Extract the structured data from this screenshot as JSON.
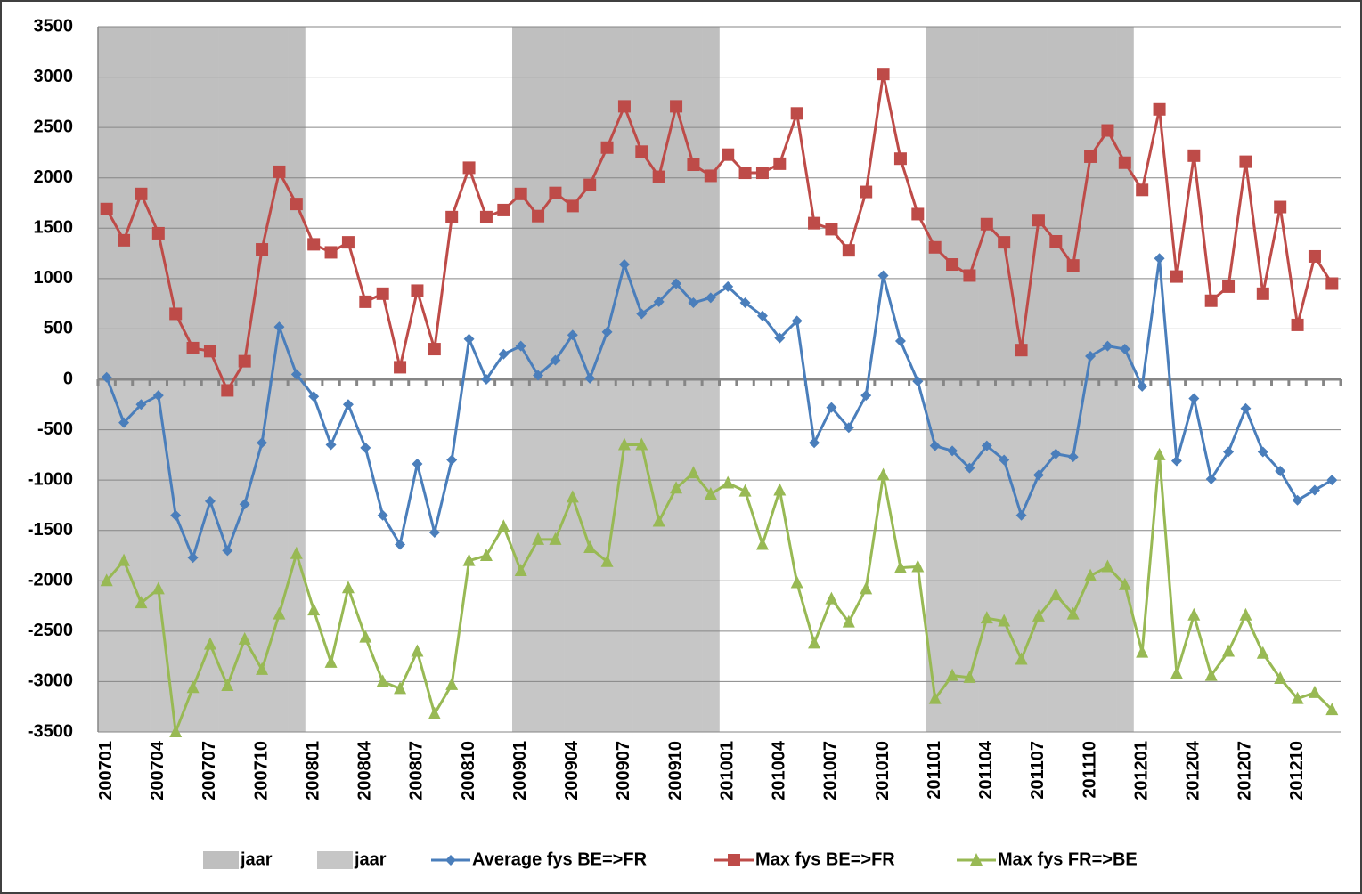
{
  "chart_data": {
    "type": "line",
    "categories": [
      "200701",
      null,
      null,
      "200704",
      null,
      null,
      "200707",
      null,
      null,
      "200710",
      null,
      null,
      "200801",
      null,
      null,
      "200804",
      null,
      null,
      "200807",
      null,
      null,
      "200810",
      null,
      null,
      "200901",
      null,
      null,
      "200904",
      null,
      null,
      "200907",
      null,
      null,
      "200910",
      null,
      null,
      "201001",
      null,
      null,
      "201004",
      null,
      null,
      "201007",
      null,
      null,
      "201010",
      null,
      null,
      "201101",
      null,
      null,
      "201104",
      null,
      null,
      "201107",
      null,
      null,
      "201110",
      null,
      null,
      "201201",
      null,
      null,
      "201204",
      null,
      null,
      "201207",
      null,
      null,
      "201210",
      null,
      null
    ],
    "ylim": [
      -3500,
      3500
    ],
    "yticks": [
      -3500,
      -3000,
      -2500,
      -2000,
      -1500,
      -1000,
      -500,
      0,
      500,
      1000,
      1500,
      2000,
      2500,
      3000,
      3500
    ],
    "grid": true,
    "legend": "bottom",
    "series": [
      {
        "name": "jaar",
        "type": "bar",
        "color": "#bfbfbf",
        "values": [
          3500,
          3500,
          3500,
          3500,
          3500,
          3500,
          3500,
          3500,
          3500,
          3500,
          3500,
          3500,
          null,
          null,
          null,
          null,
          null,
          null,
          null,
          null,
          null,
          null,
          null,
          null,
          3500,
          3500,
          3500,
          3500,
          3500,
          3500,
          3500,
          3500,
          3500,
          3500,
          3500,
          3500,
          null,
          null,
          null,
          null,
          null,
          null,
          null,
          null,
          null,
          null,
          null,
          null,
          3500,
          3500,
          3500,
          3500,
          3500,
          3500,
          3500,
          3500,
          3500,
          3500,
          3500,
          3500,
          null,
          null,
          null,
          null,
          null,
          null,
          null,
          null,
          null,
          null,
          null,
          null
        ]
      },
      {
        "name": "jaar",
        "type": "bar",
        "color": "#c6c6c6",
        "values": [
          -3500,
          -3500,
          -3500,
          -3500,
          -3500,
          -3500,
          -3500,
          -3500,
          -3500,
          -3500,
          -3500,
          -3500,
          null,
          null,
          null,
          null,
          null,
          null,
          null,
          null,
          null,
          null,
          null,
          null,
          -3500,
          -3500,
          -3500,
          -3500,
          -3500,
          -3500,
          -3500,
          -3500,
          -3500,
          -3500,
          -3500,
          -3500,
          null,
          null,
          null,
          null,
          null,
          null,
          null,
          null,
          null,
          null,
          null,
          null,
          -3500,
          -3500,
          -3500,
          -3500,
          -3500,
          -3500,
          -3500,
          -3500,
          -3500,
          -3500,
          -3500,
          -3500,
          null,
          null,
          null,
          null,
          null,
          null,
          null,
          null,
          null,
          null,
          null,
          null
        ]
      },
      {
        "name": "Average fys BE=>FR",
        "type": "line",
        "marker": "diamond",
        "color": "#4a7ebb",
        "values": [
          20,
          -430,
          -250,
          -160,
          -1350,
          -1770,
          -1210,
          -1700,
          -1240,
          -630,
          520,
          50,
          -170,
          -650,
          -250,
          -680,
          -1350,
          -1640,
          -840,
          -1520,
          -800,
          400,
          0,
          250,
          330,
          40,
          190,
          440,
          10,
          470,
          1140,
          650,
          770,
          950,
          760,
          810,
          920,
          760,
          630,
          410,
          580,
          -630,
          -280,
          -480,
          -160,
          1030,
          380,
          -20,
          -660,
          -710,
          -880,
          -660,
          -800,
          -1350,
          -950,
          -740,
          -770,
          230,
          330,
          300,
          -70,
          1200,
          -810,
          -190,
          -990,
          -720,
          -290,
          -720,
          -910,
          -1200,
          -1100,
          -1000
        ]
      },
      {
        "name": "Max fys BE=>FR",
        "type": "line",
        "marker": "square",
        "color": "#be4b48",
        "values": [
          1690,
          1380,
          1840,
          1450,
          650,
          310,
          280,
          -110,
          180,
          1290,
          2060,
          1740,
          1340,
          1260,
          1360,
          770,
          850,
          120,
          880,
          300,
          1610,
          2100,
          1610,
          1680,
          1840,
          1620,
          1850,
          1720,
          1930,
          2300,
          2710,
          2260,
          2010,
          2710,
          2130,
          2020,
          2230,
          2050,
          2050,
          2140,
          2640,
          1550,
          1490,
          1280,
          1860,
          3030,
          2190,
          1640,
          1310,
          1140,
          1030,
          1540,
          1360,
          290,
          1580,
          1370,
          1130,
          2210,
          2470,
          2150,
          1880,
          2680,
          1020,
          2220,
          780,
          920,
          2160,
          850,
          1710,
          540,
          1220,
          950
        ]
      },
      {
        "name": "Max fys FR=>BE",
        "type": "line",
        "marker": "triangle",
        "color": "#98b954",
        "values": [
          -2000,
          -1800,
          -2220,
          -2080,
          -3500,
          -3060,
          -2630,
          -3040,
          -2580,
          -2880,
          -2330,
          -1730,
          -2290,
          -2810,
          -2070,
          -2560,
          -3000,
          -3070,
          -2700,
          -3320,
          -3030,
          -1800,
          -1750,
          -1460,
          -1900,
          -1590,
          -1590,
          -1170,
          -1670,
          -1810,
          -650,
          -650,
          -1410,
          -1080,
          -930,
          -1140,
          -1030,
          -1110,
          -1640,
          -1100,
          -2020,
          -2620,
          -2180,
          -2410,
          -2080,
          -950,
          -1870,
          -1860,
          -3170,
          -2940,
          -2960,
          -2370,
          -2400,
          -2780,
          -2350,
          -2140,
          -2330,
          -1950,
          -1860,
          -2040,
          -2710,
          -750,
          -2920,
          -2340,
          -2940,
          -2700,
          -2340,
          -2720,
          -2970,
          -3170,
          -3110,
          -3280
        ]
      }
    ]
  }
}
